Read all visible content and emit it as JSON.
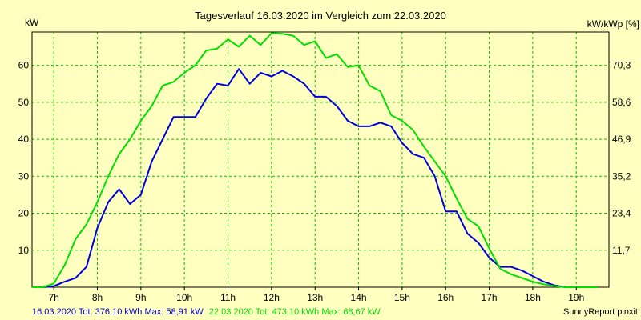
{
  "chart_data": {
    "type": "line",
    "title": "Tagesverlauf 16.03.2020 im Vergleich zum 22.03.2020",
    "ylabel_left": "kW",
    "ylabel_right": "kW/kWp [%]",
    "x_ticks": [
      "7h",
      "8h",
      "9h",
      "10h",
      "11h",
      "12h",
      "13h",
      "14h",
      "15h",
      "16h",
      "17h",
      "18h",
      "19h"
    ],
    "y_ticks_left": [
      "10",
      "20",
      "30",
      "40",
      "50",
      "60"
    ],
    "y_ticks_right": [
      "11,7",
      "23,4",
      "35,2",
      "46,9",
      "58,6",
      "70,3"
    ],
    "xlim": [
      6.5,
      19.75
    ],
    "ylim": [
      0,
      69
    ],
    "grid": true,
    "colors": {
      "background": "#ffffc0",
      "grid": "#00c000",
      "series1": "#0000dd",
      "series2": "#00e000"
    },
    "series": [
      {
        "name": "16.03.2020",
        "color": "#0000dd",
        "x": [
          6.5,
          6.75,
          7.0,
          7.25,
          7.5,
          7.75,
          8.0,
          8.25,
          8.5,
          8.75,
          9.0,
          9.25,
          9.5,
          9.75,
          10.0,
          10.25,
          10.5,
          10.75,
          11.0,
          11.25,
          11.5,
          11.75,
          12.0,
          12.25,
          12.5,
          12.75,
          13.0,
          13.25,
          13.5,
          13.75,
          14.0,
          14.25,
          14.5,
          14.75,
          15.0,
          15.25,
          15.5,
          15.75,
          16.0,
          16.25,
          16.5,
          16.75,
          17.0,
          17.25,
          17.5,
          17.75,
          18.0,
          18.25,
          18.5,
          18.75,
          19.0,
          19.25,
          19.5
        ],
        "values": [
          0,
          0,
          0.3,
          1.5,
          2.5,
          5.5,
          16,
          23,
          26.5,
          22.5,
          25,
          34,
          40,
          46,
          46,
          46,
          51,
          55,
          54.5,
          59,
          55,
          58,
          57,
          58.5,
          57,
          55,
          51.5,
          51.5,
          49,
          45,
          43.5,
          43.5,
          44.5,
          43.5,
          39,
          36,
          35,
          30,
          20.5,
          20.5,
          14.5,
          12,
          8,
          5.5,
          5.5,
          4.5,
          3,
          1.5,
          0.5,
          0,
          0,
          0,
          0
        ]
      },
      {
        "name": "22.03.2020",
        "color": "#00e000",
        "x": [
          6.5,
          6.75,
          7.0,
          7.25,
          7.5,
          7.75,
          8.0,
          8.25,
          8.5,
          8.75,
          9.0,
          9.25,
          9.5,
          9.75,
          10.0,
          10.25,
          10.5,
          10.75,
          11.0,
          11.25,
          11.5,
          11.75,
          12.0,
          12.25,
          12.5,
          12.75,
          13.0,
          13.25,
          13.5,
          13.75,
          14.0,
          14.25,
          14.5,
          14.75,
          15.0,
          15.25,
          15.5,
          15.75,
          16.0,
          16.25,
          16.5,
          16.75,
          17.0,
          17.25,
          17.5,
          17.75,
          18.0,
          18.25,
          18.5,
          18.75,
          19.0,
          19.25,
          19.5
        ],
        "values": [
          0,
          0,
          1,
          6,
          13,
          17,
          23,
          30,
          36,
          40,
          45,
          49,
          54.5,
          55.5,
          58,
          60,
          64,
          64.5,
          67,
          65,
          68,
          65.5,
          68.67,
          68.5,
          68,
          65.5,
          66.5,
          62,
          63,
          59.5,
          60,
          54.5,
          53,
          46.5,
          45,
          42.5,
          38,
          34,
          30,
          24,
          18.5,
          16.5,
          10.5,
          5,
          3.5,
          2.5,
          1.5,
          0.8,
          0.3,
          0,
          0,
          0,
          0
        ]
      }
    ]
  },
  "footer": {
    "series1_text": "16.03.2020 Tot: 376,10 kWh Max: 58,91 kW",
    "series2_text": "22.03.2020 Tot: 473,10 kWh Max: 68,67 kW",
    "brand": "SunnyReport pinxit"
  }
}
